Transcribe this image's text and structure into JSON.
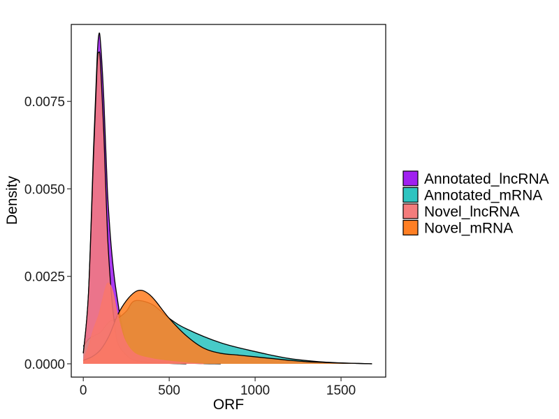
{
  "chart_data": {
    "type": "area",
    "xlabel": "ORF",
    "ylabel": "Density",
    "xlim": [
      -70,
      1760
    ],
    "ylim": [
      -0.00038,
      0.0097
    ],
    "x_ticks": [
      0,
      500,
      1000,
      1500
    ],
    "x_tick_labels": [
      "0",
      "500",
      "1000",
      "1500"
    ],
    "y_ticks": [
      0.0,
      0.0025,
      0.005,
      0.0075
    ],
    "y_tick_labels": [
      "0.0000",
      "0.0025",
      "0.0050",
      "0.0075"
    ],
    "grid": false,
    "legend_position": "right",
    "series": [
      {
        "name": "Annotated_lncRNA",
        "color": "#A020F0",
        "x": [
          0,
          30,
          60,
          80,
          90,
          100,
          120,
          140,
          160,
          180,
          200,
          220,
          250,
          300,
          400,
          600,
          800
        ],
        "y": [
          0.0003,
          0.002,
          0.0062,
          0.0087,
          0.0094,
          0.0092,
          0.0075,
          0.005,
          0.0035,
          0.0025,
          0.0018,
          0.0012,
          0.0006,
          0.0003,
          0.0001,
          2e-05,
          0.0
        ]
      },
      {
        "name": "Annotated_mRNA",
        "color": "#2EC4C0",
        "x": [
          0,
          30,
          60,
          100,
          150,
          200,
          250,
          300,
          400,
          500,
          600,
          800,
          1000,
          1200,
          1400,
          1600,
          1680
        ],
        "y": [
          0.0005,
          0.0007,
          0.0008,
          0.0009,
          0.0012,
          0.0013,
          0.0015,
          0.0018,
          0.0017,
          0.0013,
          0.001,
          0.0006,
          0.00035,
          0.00015,
          5e-05,
          1e-05,
          0.0
        ]
      },
      {
        "name": "Novel_lncRNA",
        "color": "#F47C7C",
        "x": [
          0,
          30,
          60,
          80,
          90,
          100,
          120,
          140,
          160,
          180,
          200,
          250,
          300,
          400,
          600
        ],
        "y": [
          0.0003,
          0.002,
          0.006,
          0.0085,
          0.0089,
          0.0086,
          0.0065,
          0.0038,
          0.0022,
          0.0012,
          0.0006,
          0.00025,
          0.0001,
          3e-05,
          0.0
        ]
      },
      {
        "name": "Novel_mRNA",
        "color": "#FF7F24",
        "x": [
          0,
          50,
          100,
          150,
          200,
          250,
          300,
          340,
          380,
          420,
          500,
          600,
          700,
          800,
          900,
          1000,
          1100,
          1200,
          1300,
          1400,
          1500,
          1600,
          1680
        ],
        "y": [
          0.0001,
          0.0002,
          0.0004,
          0.0008,
          0.0014,
          0.0018,
          0.00205,
          0.0021,
          0.002,
          0.0018,
          0.0013,
          0.0008,
          0.00045,
          0.0003,
          0.00025,
          0.0002,
          0.00015,
          0.0001,
          6e-05,
          4e-05,
          2e-05,
          1e-05,
          0.0
        ]
      },
      {
        "name": "",
        "color": "#F8766D",
        "x": [
          0,
          30,
          60,
          90,
          110,
          140,
          170,
          200,
          240,
          300,
          400,
          500,
          600,
          700
        ],
        "y": [
          0.0001,
          0.0005,
          0.001,
          0.0014,
          0.0018,
          0.0023,
          0.0021,
          0.0014,
          0.0007,
          0.0003,
          0.00015,
          8e-05,
          3e-05,
          0.0
        ]
      }
    ]
  }
}
